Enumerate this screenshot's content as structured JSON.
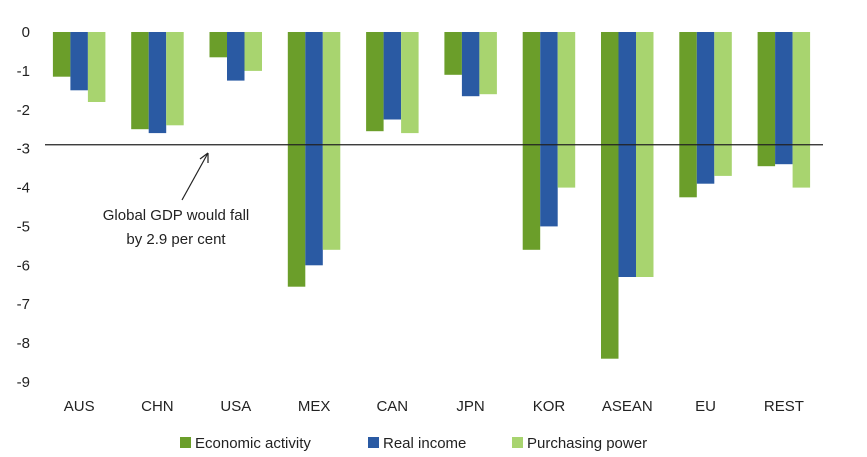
{
  "chart_data": {
    "type": "bar",
    "title": "",
    "xlabel": "",
    "ylabel": "",
    "ylim": [
      -9,
      0
    ],
    "yticks": [
      0,
      -1,
      -2,
      -3,
      -4,
      -5,
      -6,
      -7,
      -8,
      -9
    ],
    "categories": [
      "AUS",
      "CHN",
      "USA",
      "MEX",
      "CAN",
      "JPN",
      "KOR",
      "ASEAN",
      "EU",
      "REST"
    ],
    "series": [
      {
        "name": "Economic activity",
        "color": "#6b9e2a",
        "values": [
          -1.15,
          -2.5,
          -0.65,
          -6.55,
          -2.55,
          -1.1,
          -5.6,
          -8.4,
          -4.25,
          -3.45
        ]
      },
      {
        "name": "Real income",
        "color": "#2a5aa3",
        "values": [
          -1.5,
          -2.6,
          -1.25,
          -6.0,
          -2.25,
          -1.65,
          -5.0,
          -6.3,
          -3.9,
          -3.4
        ]
      },
      {
        "name": "Purchasing power",
        "color": "#a8d46f",
        "values": [
          -1.8,
          -2.4,
          -1.0,
          -5.6,
          -2.6,
          -1.6,
          -4.0,
          -6.3,
          -3.7,
          -4.0
        ]
      }
    ],
    "reference_line": {
      "value": -2.9
    },
    "annotation": {
      "lines": [
        "Global GDP would fall",
        "by 2.9 per cent"
      ]
    },
    "grid": false,
    "legend_position": "bottom"
  }
}
